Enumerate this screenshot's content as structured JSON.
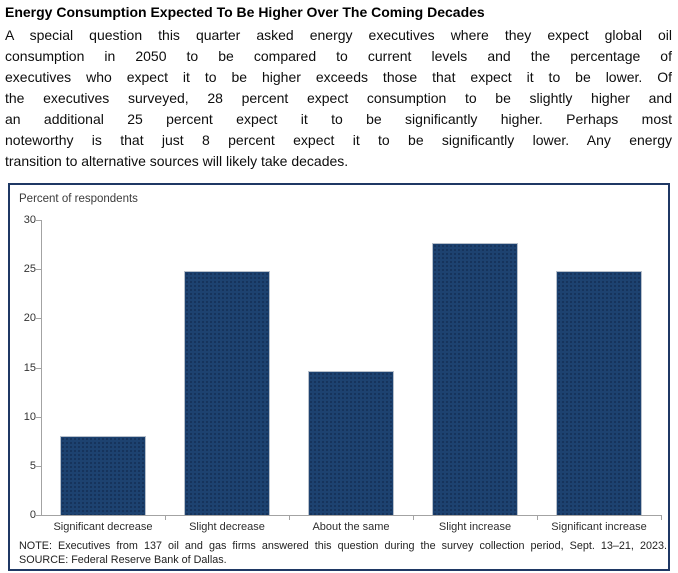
{
  "title": "Energy Consumption Expected To Be Higher Over The Coming Decades",
  "paragraph_lines": [
    "A special question this quarter asked energy executives where they expect global oil",
    "consumption in 2050 to be compared to current levels and the percentage of",
    "executives who expect it to be higher exceeds those that expect it to be lower. Of",
    "the executives surveyed, 28 percent expect consumption to be slightly higher and",
    "an additional 25 percent expect it to be significantly higher. Perhaps most",
    "noteworthy is that just 8 percent expect it to be significantly lower. Any energy",
    "transition to alternative sources will likely take decades."
  ],
  "chart": {
    "y_axis_label": "Percent of respondents",
    "note": "NOTE: Executives from 137 oil and gas firms answered this question during the survey collection period, Sept. 13–21, 2023.",
    "source": "SOURCE: Federal Reserve Bank of Dallas.",
    "colors": {
      "frame": "#1f3864",
      "bar_fill": "#1d4270",
      "bar_edge": "#b8c0cb",
      "axis": "#a3a3a3",
      "text": "#333333"
    }
  },
  "chart_data": {
    "type": "bar",
    "categories": [
      "Significant decrease",
      "Slight decrease",
      "About the same",
      "Slight increase",
      "Significant increase"
    ],
    "values": [
      8.0,
      24.8,
      14.6,
      27.7,
      24.8
    ],
    "title": "",
    "xlabel": "",
    "ylabel": "Percent of respondents",
    "ylim": [
      0,
      30
    ],
    "yticks": [
      0,
      5,
      10,
      15,
      20,
      25,
      30
    ],
    "grid": false,
    "legend": null
  }
}
